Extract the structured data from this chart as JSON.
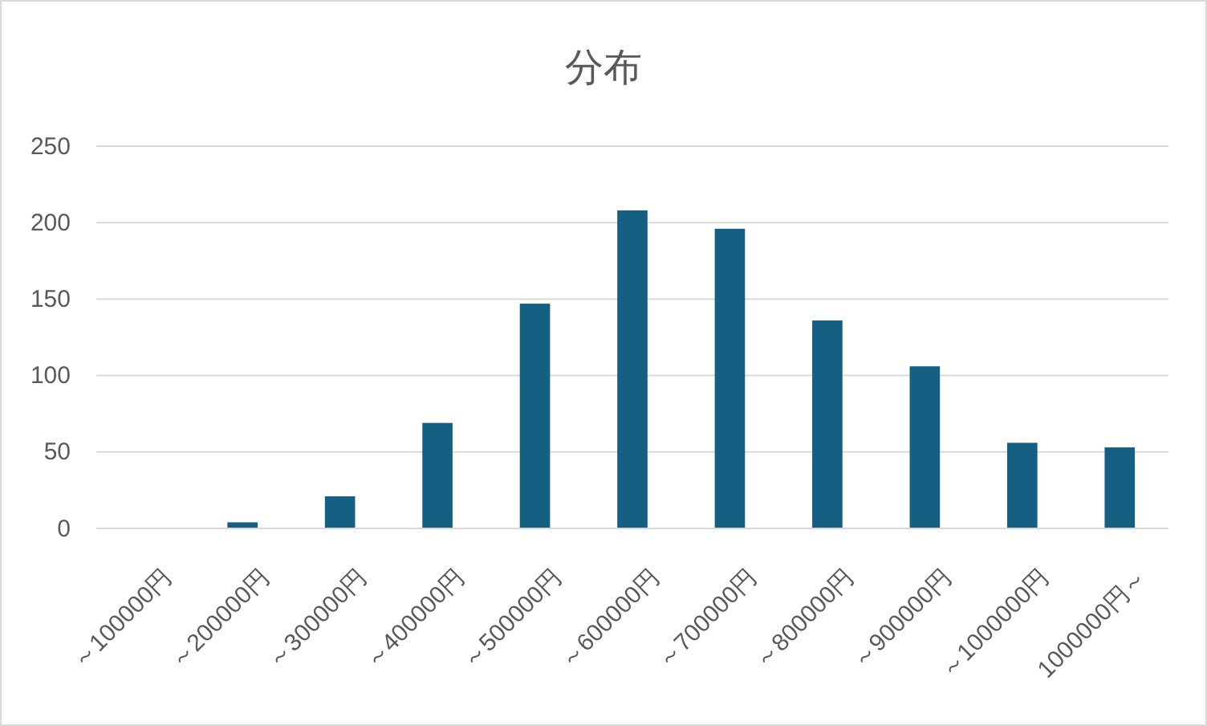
{
  "chart_data": {
    "type": "bar",
    "title": "分布",
    "categories": [
      "～100000円",
      "～200000円",
      "～300000円",
      "～400000円",
      "～500000円",
      "～600000円",
      "～700000円",
      "～800000円",
      "～900000円",
      "～1000000円",
      "1000000円～"
    ],
    "values": [
      0,
      4,
      21,
      69,
      147,
      208,
      196,
      136,
      106,
      56,
      53
    ],
    "color": "#155f82",
    "ylim": [
      0,
      250
    ],
    "yticks": [
      0,
      50,
      100,
      150,
      200,
      250
    ],
    "grid": "y"
  }
}
